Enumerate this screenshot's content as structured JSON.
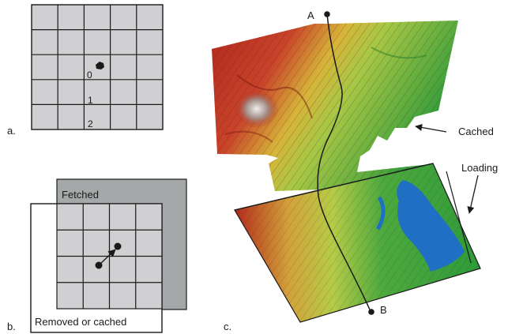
{
  "panel_a": {
    "label": "a.",
    "ring_labels": [
      "0",
      "1",
      "2"
    ]
  },
  "panel_b": {
    "label": "b.",
    "fetched_label": "Fetched",
    "removed_label": "Removed or cached"
  },
  "panel_c": {
    "label": "c.",
    "point_a": "A",
    "point_b": "B",
    "cached_label": "Cached",
    "loading_label": "Loading"
  },
  "colors": {
    "tile": "#d0d0d2",
    "tile_line": "#1a1a1a",
    "fetched_fill": "#a4a8a8",
    "terrain_low": "#2e9b3a",
    "terrain_mid": "#d7c83a",
    "terrain_high": "#b0281c",
    "water": "#1f6fc4"
  }
}
